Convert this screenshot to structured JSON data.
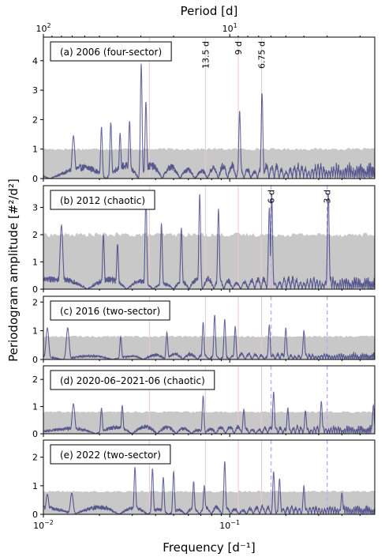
{
  "chart_data": {
    "type": "line",
    "xlabel": "Frequency [d⁻¹]",
    "ylabel": "Periodogram amplitude [#²/d²]",
    "top_axis_label": "Period [d]",
    "xscale": "log",
    "xlim": [
      0.01,
      0.6
    ],
    "x_ticks": [
      {
        "value": 0.01,
        "base": "10",
        "exp": "−2"
      },
      {
        "value": 0.1,
        "base": "10",
        "exp": "−1"
      }
    ],
    "top_ticks": [
      {
        "period": 100,
        "base": "10",
        "exp": "2"
      },
      {
        "period": 10,
        "base": "10",
        "exp": "1"
      }
    ],
    "line_color": "#1a1a6e",
    "noise_color": "#c8c8c8",
    "marker_color": "#e8c8d0",
    "dashed_color": "#c8a8f0",
    "reference_periods": [
      {
        "period": 27,
        "label": ""
      },
      {
        "period": 13.5,
        "label": "13.5 d"
      },
      {
        "period": 9,
        "label": "9 d"
      },
      {
        "period": 6.75,
        "label": "6.75 d"
      }
    ],
    "dashed_periods": [
      {
        "period": 6,
        "label": "6 d"
      },
      {
        "period": 3,
        "label": "3 d"
      }
    ],
    "panels": [
      {
        "label": "(a) 2006 (four-sector)",
        "ylim": [
          0,
          4.8
        ],
        "yticks": [
          0,
          1,
          2,
          3,
          4
        ],
        "noise": 1.0,
        "floor": 0.35,
        "show_ref_labels": true,
        "show_dashed": false,
        "peaks": [
          [
            0.0145,
            1.45
          ],
          [
            0.0205,
            1.75
          ],
          [
            0.023,
            1.9
          ],
          [
            0.0258,
            1.55
          ],
          [
            0.029,
            1.95
          ],
          [
            0.0335,
            3.9
          ],
          [
            0.0355,
            2.6
          ],
          [
            0.113,
            2.3
          ],
          [
            0.149,
            2.9
          ]
        ]
      },
      {
        "label": "(b) 2012 (chaotic)",
        "ylim": [
          0,
          3.8
        ],
        "yticks": [
          0,
          1,
          2,
          3
        ],
        "noise": 2.0,
        "floor": 0.3,
        "show_ref_labels": false,
        "show_dashed": true,
        "peaks": [
          [
            0.0125,
            2.35
          ],
          [
            0.021,
            2.0
          ],
          [
            0.025,
            1.65
          ],
          [
            0.0355,
            3.5
          ],
          [
            0.043,
            2.4
          ],
          [
            0.055,
            2.25
          ],
          [
            0.069,
            3.5
          ],
          [
            0.087,
            2.95
          ],
          [
            0.163,
            3.0
          ],
          [
            0.168,
            3.5
          ],
          [
            0.338,
            3.5
          ]
        ]
      },
      {
        "label": "(c) 2016 (two-sector)",
        "ylim": [
          0,
          2.2
        ],
        "yticks": [
          0,
          1,
          2
        ],
        "noise": 0.8,
        "floor": 0.15,
        "show_ref_labels": false,
        "show_dashed": true,
        "peaks": [
          [
            0.0105,
            1.1
          ],
          [
            0.0135,
            1.1
          ],
          [
            0.026,
            0.8
          ],
          [
            0.046,
            0.95
          ],
          [
            0.072,
            1.3
          ],
          [
            0.083,
            1.55
          ],
          [
            0.094,
            1.4
          ],
          [
            0.107,
            1.15
          ],
          [
            0.163,
            1.2
          ],
          [
            0.2,
            1.1
          ],
          [
            0.25,
            1.0
          ]
        ]
      },
      {
        "label": "(d) 2020-06–2021-06 (chaotic)",
        "ylim": [
          0,
          2.5
        ],
        "yticks": [
          0,
          1,
          2
        ],
        "noise": 0.8,
        "floor": 0.2,
        "show_ref_labels": false,
        "show_dashed": true,
        "peaks": [
          [
            0.0145,
            1.1
          ],
          [
            0.0205,
            0.95
          ],
          [
            0.0265,
            1.05
          ],
          [
            0.072,
            1.4
          ],
          [
            0.119,
            0.9
          ],
          [
            0.172,
            1.55
          ],
          [
            0.205,
            0.95
          ],
          [
            0.255,
            0.85
          ],
          [
            0.31,
            1.2
          ],
          [
            0.59,
            1.05
          ]
        ]
      },
      {
        "label": "(e) 2022 (two-sector)",
        "ylim": [
          0,
          2.6
        ],
        "yticks": [
          0,
          1,
          2
        ],
        "noise": 0.8,
        "floor": 0.2,
        "show_ref_labels": false,
        "show_dashed": true,
        "peaks": [
          [
            0.0105,
            0.7
          ],
          [
            0.0142,
            0.75
          ],
          [
            0.031,
            1.65
          ],
          [
            0.0385,
            1.6
          ],
          [
            0.044,
            1.3
          ],
          [
            0.05,
            1.5
          ],
          [
            0.064,
            1.15
          ],
          [
            0.073,
            1.0
          ],
          [
            0.094,
            1.85
          ],
          [
            0.172,
            1.5
          ],
          [
            0.185,
            1.25
          ],
          [
            0.25,
            1.0
          ],
          [
            0.4,
            0.75
          ]
        ]
      }
    ]
  }
}
